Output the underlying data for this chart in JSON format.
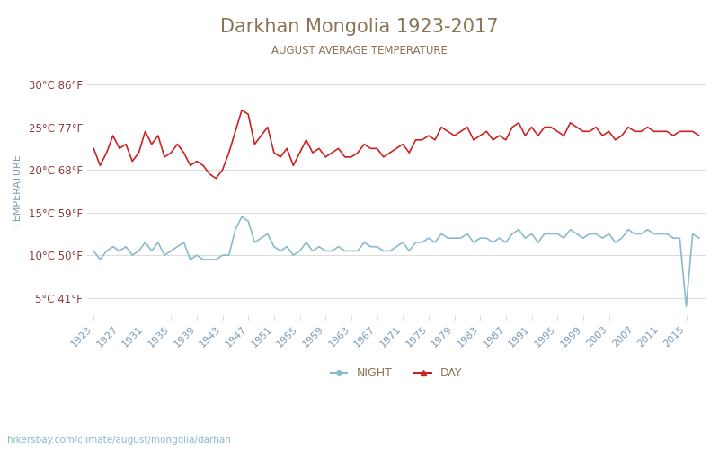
{
  "title": "Darkhan Mongolia 1923-2017",
  "subtitle": "AUGUST AVERAGE TEMPERATURE",
  "ylabel": "TEMPERATURE",
  "xlabel_url": "hikersbay.com/climate/august/mongolia/darhan",
  "year_start": 1923,
  "year_end": 2017,
  "year_step": 4,
  "yticks_c": [
    5,
    10,
    15,
    20,
    25,
    30
  ],
  "yticks_f": [
    41,
    50,
    59,
    68,
    77,
    86
  ],
  "ylim": [
    3,
    32
  ],
  "title_color": "#8B7355",
  "subtitle_color": "#8B7355",
  "ylabel_color": "#7a9ab5",
  "ytick_color": "#8B3A3A",
  "xtick_color": "#7a9ab5",
  "day_color": "#cc2222",
  "night_color": "#88bbcc",
  "bg_color": "#ffffff",
  "grid_color": "#dddddd",
  "legend_night": "NIGHT",
  "legend_day": "DAY",
  "day_values": [
    22.5,
    20.5,
    22.0,
    24.0,
    22.5,
    23.0,
    21.0,
    22.0,
    24.5,
    23.0,
    24.0,
    21.5,
    22.0,
    23.0,
    22.0,
    20.5,
    21.0,
    20.5,
    19.5,
    19.0,
    20.0,
    22.0,
    24.5,
    27.0,
    26.5,
    23.0,
    24.0,
    25.0,
    22.0,
    21.5,
    22.5,
    20.5,
    22.0,
    23.5,
    22.0,
    22.5,
    21.5,
    22.0,
    22.5,
    21.5,
    21.5,
    22.0,
    23.0,
    22.5,
    22.5,
    21.5,
    22.0,
    22.5,
    23.0,
    22.0,
    23.5,
    23.5,
    24.0,
    23.5,
    25.0,
    24.5,
    24.0,
    24.5,
    25.0,
    23.5,
    24.0,
    24.5,
    23.5,
    24.0,
    23.5,
    25.0,
    25.5,
    24.0,
    25.0,
    24.0,
    25.0,
    25.0,
    24.5,
    24.0,
    25.5,
    25.0,
    24.5,
    24.5,
    25.0,
    24.0,
    24.5,
    23.5,
    24.0,
    25.0,
    24.5,
    24.5,
    25.0,
    24.5,
    24.5,
    24.5,
    24.0,
    24.5,
    24.5,
    24.5,
    24.0
  ],
  "night_values": [
    10.5,
    9.5,
    10.5,
    11.0,
    10.5,
    11.0,
    10.0,
    10.5,
    11.5,
    10.5,
    11.5,
    10.0,
    10.5,
    11.0,
    11.5,
    9.5,
    10.0,
    9.5,
    9.5,
    9.5,
    10.0,
    10.0,
    13.0,
    14.5,
    14.0,
    11.5,
    12.0,
    12.5,
    11.0,
    10.5,
    11.0,
    10.0,
    10.5,
    11.5,
    10.5,
    11.0,
    10.5,
    10.5,
    11.0,
    10.5,
    10.5,
    10.5,
    11.5,
    11.0,
    11.0,
    10.5,
    10.5,
    11.0,
    11.5,
    10.5,
    11.5,
    11.5,
    12.0,
    11.5,
    12.5,
    12.0,
    12.0,
    12.0,
    12.5,
    11.5,
    12.0,
    12.0,
    11.5,
    12.0,
    11.5,
    12.5,
    13.0,
    12.0,
    12.5,
    11.5,
    12.5,
    12.5,
    12.5,
    12.0,
    13.0,
    12.5,
    12.0,
    12.5,
    12.5,
    12.0,
    12.5,
    11.5,
    12.0,
    13.0,
    12.5,
    12.5,
    13.0,
    12.5,
    12.5,
    12.5,
    12.0,
    12.0,
    4.0,
    12.5,
    12.0
  ]
}
